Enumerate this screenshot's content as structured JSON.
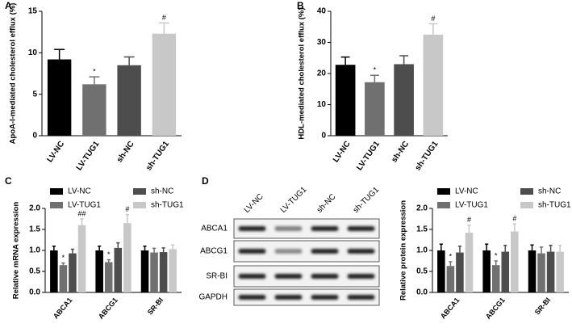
{
  "chart_data": [
    {
      "type": "bar",
      "panel": "A",
      "ylabel": "ApoA-I-mediated cholesterol efflux (%)",
      "categories": [
        "LV-NC",
        "LV-TUG1",
        "sh-NC",
        "sh-TUG1"
      ],
      "values": [
        9.2,
        6.2,
        8.5,
        12.3
      ],
      "errors": [
        1.2,
        0.9,
        1.0,
        1.3
      ],
      "markers": [
        null,
        "*",
        null,
        "#"
      ],
      "colors": [
        "#000000",
        "#707070",
        "#4d4d4d",
        "#c8c8c8"
      ],
      "ylim": [
        0,
        15
      ],
      "yticks": [
        0,
        5,
        10,
        15
      ]
    },
    {
      "type": "bar",
      "panel": "B",
      "ylabel": "HDL-mediated cholesterol efflux (%)",
      "categories": [
        "LV-NC",
        "LV-TUG1",
        "sh-NC",
        "sh-TUG1"
      ],
      "values": [
        22.8,
        17.2,
        23.0,
        32.5
      ],
      "errors": [
        2.5,
        2.2,
        2.7,
        3.5
      ],
      "markers": [
        null,
        "*",
        null,
        "#"
      ],
      "colors": [
        "#000000",
        "#707070",
        "#4d4d4d",
        "#c8c8c8"
      ],
      "ylim": [
        0,
        40
      ],
      "yticks": [
        0,
        10,
        20,
        30,
        40
      ]
    },
    {
      "type": "grouped_bar",
      "panel": "C",
      "ylabel": "Relative mRNA expression",
      "categories": [
        "ABCA1",
        "ABCG1",
        "SR-BI"
      ],
      "series": [
        {
          "name": "LV-NC",
          "color": "#000000",
          "values": [
            1.0,
            1.0,
            1.0
          ],
          "errors": [
            0.1,
            0.1,
            0.1
          ],
          "markers": [
            null,
            null,
            null
          ]
        },
        {
          "name": "LV-TUG1",
          "color": "#707070",
          "values": [
            0.65,
            0.72,
            0.95
          ],
          "errors": [
            0.05,
            0.06,
            0.1
          ],
          "markers": [
            "*",
            "*",
            null
          ]
        },
        {
          "name": "sh-NC",
          "color": "#4d4d4d",
          "values": [
            0.93,
            1.06,
            0.96
          ],
          "errors": [
            0.1,
            0.12,
            0.1
          ],
          "markers": [
            null,
            null,
            null
          ]
        },
        {
          "name": "sh-TUG1",
          "color": "#c8c8c8",
          "values": [
            1.6,
            1.65,
            1.03
          ],
          "errors": [
            0.15,
            0.2,
            0.1
          ],
          "markers": [
            "##",
            "#",
            null
          ]
        }
      ],
      "ylim": [
        0,
        2
      ],
      "yticks": [
        {
          "value": 0,
          "label": "0.0"
        },
        0.5,
        {
          "value": 1,
          "label": "1.0"
        },
        1.5,
        {
          "value": 2,
          "label": "2.0"
        }
      ]
    },
    {
      "type": "grouped_bar",
      "panel": "D",
      "ylabel": "Relative protein expression",
      "categories": [
        "ABCA1",
        "ABCG1",
        "SR-BI"
      ],
      "series": [
        {
          "name": "LV-NC",
          "color": "#000000",
          "values": [
            1.0,
            1.0,
            1.0
          ],
          "errors": [
            0.15,
            0.15,
            0.13
          ],
          "markers": [
            null,
            null,
            null
          ]
        },
        {
          "name": "LV-TUG1",
          "color": "#707070",
          "values": [
            0.63,
            0.65,
            0.93
          ],
          "errors": [
            0.1,
            0.1,
            0.15
          ],
          "markers": [
            "*",
            "*",
            null
          ]
        },
        {
          "name": "sh-NC",
          "color": "#4d4d4d",
          "values": [
            0.95,
            0.97,
            0.97
          ],
          "errors": [
            0.15,
            0.15,
            0.15
          ],
          "markers": [
            null,
            null,
            null
          ]
        },
        {
          "name": "sh-TUG1",
          "color": "#c8c8c8",
          "values": [
            1.42,
            1.45,
            0.97
          ],
          "errors": [
            0.18,
            0.18,
            0.15
          ],
          "markers": [
            "#",
            "#",
            null
          ]
        }
      ],
      "ylim": [
        0,
        2
      ],
      "yticks": [
        {
          "value": 0,
          "label": "0.0"
        },
        0.5,
        {
          "value": 1,
          "label": "1.0"
        },
        1.5,
        {
          "value": 2,
          "label": "2.0"
        }
      ]
    }
  ],
  "blot": {
    "lanes": [
      "LV-NC",
      "LV-TUG1",
      "sh-NC",
      "sh-TUG1"
    ],
    "rows": [
      "ABCA1",
      "ABCG1",
      "SR-BI",
      "GAPDH"
    ]
  }
}
